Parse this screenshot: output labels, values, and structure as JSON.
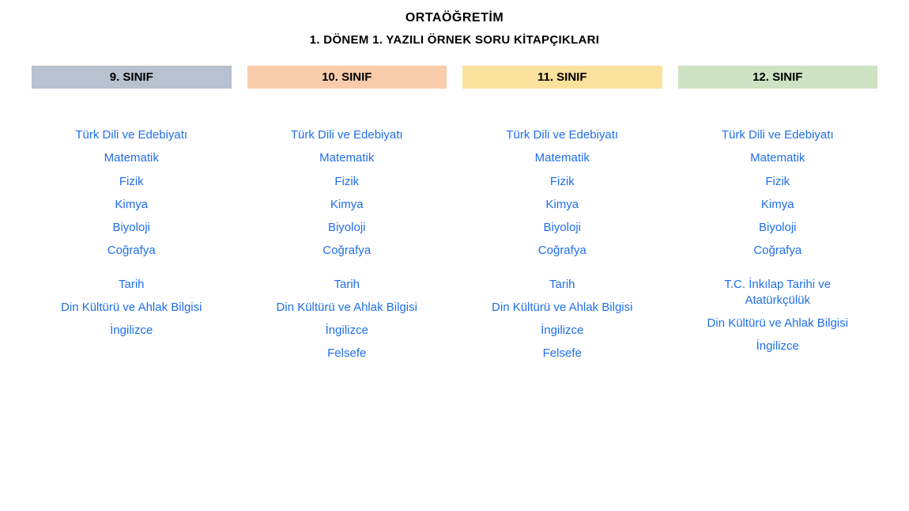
{
  "heading": {
    "title": "ORTAÖĞRETİM",
    "subtitle": "1. DÖNEM 1. YAZILI ÖRNEK SORU KİTAPÇIKLARI"
  },
  "colors": {
    "link": "#1f6feb",
    "header_text": "#000000",
    "background": "#ffffff"
  },
  "columns": [
    {
      "id": "grade-9",
      "label": "9. SINIF",
      "header_bg": "#b7c1cf",
      "subjects": [
        {
          "label": "Türk Dili ve Edebiyatı",
          "gap_before": false
        },
        {
          "label": "Matematik",
          "gap_before": false
        },
        {
          "label": "Fizik",
          "gap_before": false
        },
        {
          "label": "Kimya",
          "gap_before": false
        },
        {
          "label": "Biyoloji",
          "gap_before": false
        },
        {
          "label": "Coğrafya",
          "gap_before": false
        },
        {
          "label": "Tarih",
          "gap_before": true
        },
        {
          "label": "Din Kültürü ve Ahlak Bilgisi",
          "gap_before": false
        },
        {
          "label": "İngilizce",
          "gap_before": false
        }
      ]
    },
    {
      "id": "grade-10",
      "label": "10. SINIF",
      "header_bg": "#f9cdab",
      "subjects": [
        {
          "label": "Türk Dili ve Edebiyatı",
          "gap_before": false
        },
        {
          "label": "Matematik",
          "gap_before": false
        },
        {
          "label": "Fizik",
          "gap_before": false
        },
        {
          "label": "Kimya",
          "gap_before": false
        },
        {
          "label": "Biyoloji",
          "gap_before": false
        },
        {
          "label": "Coğrafya",
          "gap_before": false
        },
        {
          "label": "Tarih",
          "gap_before": true
        },
        {
          "label": "Din Kültürü ve Ahlak Bilgisi",
          "gap_before": false
        },
        {
          "label": "İngilizce",
          "gap_before": false
        },
        {
          "label": "Felsefe",
          "gap_before": false
        }
      ]
    },
    {
      "id": "grade-11",
      "label": "11. SINIF",
      "header_bg": "#fbe29c",
      "subjects": [
        {
          "label": "Türk Dili ve Edebiyatı",
          "gap_before": false
        },
        {
          "label": "Matematik",
          "gap_before": false
        },
        {
          "label": "Fizik",
          "gap_before": false
        },
        {
          "label": "Kimya",
          "gap_before": false
        },
        {
          "label": "Biyoloji",
          "gap_before": false
        },
        {
          "label": "Coğrafya",
          "gap_before": false
        },
        {
          "label": "Tarih",
          "gap_before": true
        },
        {
          "label": "Din Kültürü ve Ahlak Bilgisi",
          "gap_before": false
        },
        {
          "label": "İngilizce",
          "gap_before": false
        },
        {
          "label": "Felsefe",
          "gap_before": false
        }
      ]
    },
    {
      "id": "grade-12",
      "label": "12. SINIF",
      "header_bg": "#cde3c3",
      "subjects": [
        {
          "label": "Türk Dili ve Edebiyatı",
          "gap_before": false
        },
        {
          "label": "Matematik",
          "gap_before": false
        },
        {
          "label": "Fizik",
          "gap_before": false
        },
        {
          "label": "Kimya",
          "gap_before": false
        },
        {
          "label": "Biyoloji",
          "gap_before": false
        },
        {
          "label": "Coğrafya",
          "gap_before": false
        },
        {
          "label": "T.C. İnkılap Tarihi ve Atatürkçülük",
          "gap_before": true
        },
        {
          "label": "Din Kültürü ve Ahlak Bilgisi",
          "gap_before": false
        },
        {
          "label": "İngilizce",
          "gap_before": false
        }
      ]
    }
  ]
}
